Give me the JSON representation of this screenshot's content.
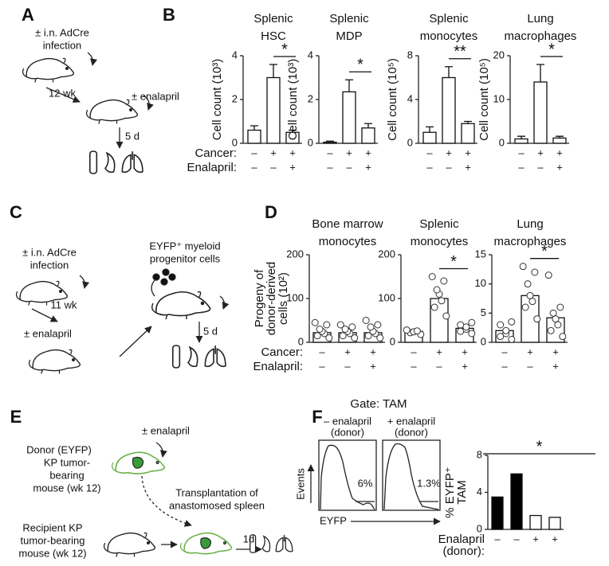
{
  "panels": {
    "A": {
      "letter": "A",
      "texts": [
        "± i.n. AdCre",
        "infection",
        "12 wk",
        "± enalapril",
        "5 d"
      ]
    },
    "B": {
      "letter": "B",
      "rows": [
        "Cancer:",
        "Enalapril:"
      ]
    },
    "C": {
      "letter": "C",
      "texts": [
        "± i.n. AdCre",
        "infection",
        "11 wk",
        "± enalapril",
        "EYFP⁺ myeloid",
        "progenitor cells",
        "5 d"
      ]
    },
    "D": {
      "letter": "D",
      "rows": [
        "Cancer:",
        "Enalapril:"
      ]
    },
    "E": {
      "letter": "E",
      "texts": [
        "± enalapril",
        "Donor (EYFP)",
        "KP tumor-",
        "bearing",
        "mouse (wk 12)",
        "Transplantation of",
        "anastomosed spleen",
        "Recipient KP",
        "tumor-bearing",
        "mouse (wk 12)",
        "1d"
      ]
    },
    "F": {
      "letter": "F",
      "gate": "Gate: TAM",
      "plot_titles": [
        [
          "– enalapril",
          "(donor)"
        ],
        [
          "+ enalapril",
          "(donor)"
        ]
      ],
      "percentages": [
        "6%",
        "1.3%"
      ],
      "events": "Events",
      "eyfp": "EYFP",
      "rows": [
        "Enalapril",
        "(donor):"
      ]
    }
  },
  "chart_data": [
    {
      "type": "bar",
      "title": [
        "Splenic",
        "HSC"
      ],
      "ylabel": [
        "Cell count (10³)"
      ],
      "values": [
        0.6,
        3.0,
        0.5
      ],
      "errors": [
        0.2,
        0.6,
        0.1
      ],
      "colors": [
        "#ffffff",
        "#ffffff",
        "#ffffff"
      ],
      "ylim": [
        0,
        4
      ],
      "yticks": [
        0,
        2,
        4
      ],
      "significance": "*",
      "conditions": [
        [
          "–",
          "+",
          "+"
        ],
        [
          "–",
          "–",
          "+"
        ]
      ]
    },
    {
      "type": "bar",
      "title": [
        "Splenic",
        "MDP"
      ],
      "ylabel": [
        "Cell count (10³)"
      ],
      "values": [
        0.05,
        2.35,
        0.7
      ],
      "errors": [
        0.05,
        0.55,
        0.2
      ],
      "colors": [
        "#ffffff",
        "#ffffff",
        "#ffffff"
      ],
      "ylim": [
        0,
        4
      ],
      "yticks": [
        0,
        2,
        4
      ],
      "significance": "*",
      "conditions": [
        [
          "–",
          "+",
          "+"
        ],
        [
          "–",
          "–",
          "+"
        ]
      ]
    },
    {
      "type": "bar",
      "title": [
        "Splenic",
        "monocytes"
      ],
      "ylabel": [
        "Cell count (10⁵)"
      ],
      "values": [
        1.0,
        6.0,
        1.8
      ],
      "errors": [
        0.5,
        1.0,
        0.2
      ],
      "colors": [
        "#ffffff",
        "#ffffff",
        "#ffffff"
      ],
      "ylim": [
        0,
        8
      ],
      "yticks": [
        0,
        4,
        8
      ],
      "significance": "**",
      "conditions": [
        [
          "–",
          "+",
          "+"
        ],
        [
          "–",
          "–",
          "+"
        ]
      ]
    },
    {
      "type": "bar",
      "title": [
        "Lung",
        "macrophages"
      ],
      "ylabel": [
        "Cell count (10⁵)"
      ],
      "values": [
        1.0,
        14.0,
        1.2
      ],
      "errors": [
        0.6,
        4.0,
        0.4
      ],
      "colors": [
        "#ffffff",
        "#ffffff",
        "#ffffff"
      ],
      "ylim": [
        0,
        20
      ],
      "yticks": [
        0,
        10,
        20
      ],
      "significance": "*",
      "conditions": [
        [
          "–",
          "+",
          "+"
        ],
        [
          "–",
          "–",
          "+"
        ]
      ]
    },
    {
      "type": "bar",
      "title": [
        "Bone marrow",
        "monocytes"
      ],
      "ylabel": [
        "Progeny of",
        "donor-derived",
        "cells (10²)"
      ],
      "values": [
        22,
        22,
        22
      ],
      "points": [
        [
          10,
          15,
          20,
          25,
          30,
          40,
          45
        ],
        [
          10,
          15,
          20,
          25,
          30,
          35,
          40
        ],
        [
          10,
          15,
          20,
          25,
          35,
          40,
          50
        ]
      ],
      "colors": [
        "#ffffff",
        "#ffffff",
        "#ffffff"
      ],
      "ylim": [
        0,
        200
      ],
      "yticks": [
        0,
        100,
        200
      ],
      "conditions": [
        [
          "–",
          "+",
          "+"
        ],
        [
          "–",
          "–",
          "+"
        ]
      ]
    },
    {
      "type": "bar",
      "title": [
        "Splenic",
        "monocytes"
      ],
      "values": [
        25,
        100,
        32
      ],
      "points": [
        [
          18,
          22,
          24,
          26,
          28
        ],
        [
          60,
          80,
          95,
          110,
          120,
          140,
          150
        ],
        [
          20,
          25,
          30,
          35,
          40,
          45
        ]
      ],
      "colors": [
        "#ffffff",
        "#ffffff",
        "#ffffff"
      ],
      "ylim": [
        0,
        200
      ],
      "yticks": [
        0,
        100,
        200
      ],
      "significance": "*",
      "conditions": [
        [
          "–",
          "+",
          "+"
        ],
        [
          "–",
          "–",
          "+"
        ]
      ]
    },
    {
      "type": "bar",
      "title": [
        "Lung",
        "macrophages"
      ],
      "values": [
        2,
        8,
        4.2
      ],
      "points": [
        [
          0.5,
          1,
          1.5,
          2,
          3,
          3.5
        ],
        [
          4,
          6,
          7,
          8,
          10,
          12,
          13
        ],
        [
          1,
          2,
          3,
          4,
          5,
          6,
          11.5
        ]
      ],
      "colors": [
        "#ffffff",
        "#ffffff",
        "#ffffff"
      ],
      "ylim": [
        0,
        15
      ],
      "yticks": [
        0,
        5,
        10,
        15
      ],
      "significance": "*",
      "conditions": [
        [
          "–",
          "+",
          "+"
        ],
        [
          "–",
          "–",
          "+"
        ]
      ]
    },
    {
      "type": "bar",
      "ylabel": [
        "% EYFP⁺",
        "TAM"
      ],
      "values": [
        3.5,
        6,
        1.5,
        1.3
      ],
      "colors": [
        "#000000",
        "#000000",
        "#ffffff",
        "#ffffff"
      ],
      "ylim": [
        0,
        8
      ],
      "yticks": [
        0,
        4,
        8
      ],
      "significance": "*",
      "conditions": [
        [
          "–",
          "–",
          "+",
          "+"
        ]
      ]
    }
  ]
}
